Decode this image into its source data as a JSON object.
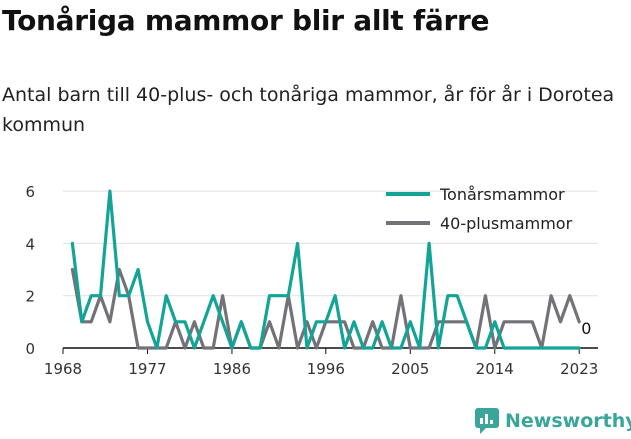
{
  "header": {
    "title": "Tonåriga mammor blir allt färre",
    "subtitle": "Antal barn till 40-plus- och tonåriga mammor, år för år i Dorotea kommun"
  },
  "brand": {
    "name": "Newsworthy",
    "icon": "newsworthy-logo-icon",
    "color": "#3aa59a"
  },
  "chart_data": {
    "type": "line",
    "x": [
      1969,
      1970,
      1971,
      1972,
      1973,
      1974,
      1975,
      1976,
      1977,
      1978,
      1979,
      1980,
      1981,
      1982,
      1983,
      1984,
      1985,
      1986,
      1987,
      1988,
      1989,
      1990,
      1991,
      1992,
      1993,
      1994,
      1995,
      1996,
      1997,
      1998,
      1999,
      2000,
      2001,
      2002,
      2003,
      2004,
      2005,
      2006,
      2007,
      2008,
      2009,
      2010,
      2011,
      2012,
      2013,
      2014,
      2015,
      2016,
      2017,
      2018,
      2019,
      2020,
      2021,
      2022,
      2023
    ],
    "series": [
      {
        "name": "Tonårsmammor",
        "color": "#12a597",
        "values": [
          4,
          1,
          2,
          2,
          6,
          2,
          2,
          3,
          1,
          0,
          2,
          1,
          1,
          0,
          1,
          2,
          1,
          0,
          1,
          0,
          0,
          2,
          2,
          2,
          4,
          0,
          1,
          1,
          2,
          0,
          1,
          0,
          0,
          1,
          0,
          0,
          1,
          0,
          4,
          0,
          2,
          2,
          1,
          0,
          0,
          1,
          0,
          0,
          0,
          0,
          0,
          0,
          0,
          0,
          0
        ]
      },
      {
        "name": "40-plusmammor",
        "color": "#737278",
        "values": [
          3,
          1,
          1,
          2,
          1,
          3,
          2,
          0,
          0,
          0,
          0,
          1,
          0,
          1,
          0,
          0,
          2,
          0,
          1,
          0,
          0,
          1,
          0,
          2,
          0,
          1,
          0,
          1,
          1,
          1,
          0,
          0,
          1,
          0,
          0,
          2,
          0,
          0,
          0,
          1,
          1,
          1,
          1,
          0,
          2,
          0,
          1,
          1,
          1,
          1,
          0,
          2,
          1,
          2,
          1
        ]
      }
    ],
    "end_label": "0",
    "xticks": [
      1968,
      1977,
      1986,
      1996,
      2005,
      2014,
      2023
    ],
    "yticks": [
      0,
      2,
      4,
      6
    ],
    "xlim": [
      1968,
      2025
    ],
    "ylim": [
      0,
      6.5
    ],
    "grid": true,
    "legend": "top-right"
  }
}
